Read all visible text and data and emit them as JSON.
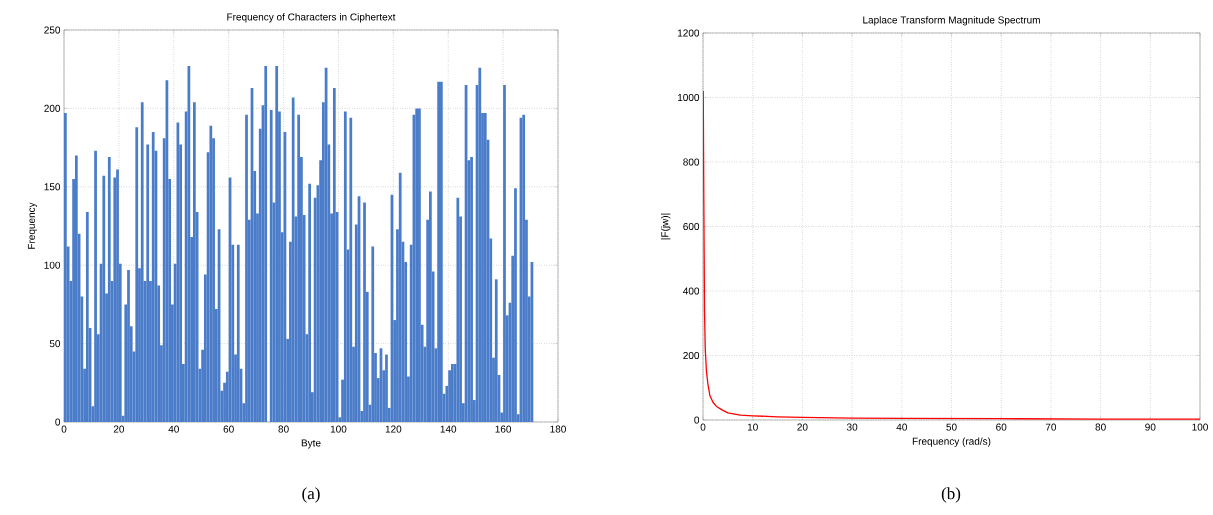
{
  "chart_data": [
    {
      "type": "bar",
      "title": "Frequency of Characters in Ciphertext",
      "xlabel": "Byte",
      "ylabel": "Frequency",
      "color": "#4a7cc9",
      "x": [
        0,
        1,
        2,
        3,
        4,
        5,
        6,
        7,
        8,
        9,
        10,
        11,
        12,
        13,
        14,
        15,
        16,
        17,
        18,
        19,
        20,
        21,
        22,
        23,
        24,
        25,
        26,
        27,
        28,
        29,
        30,
        31,
        32,
        33,
        34,
        35,
        36,
        37,
        38,
        39,
        40,
        41,
        42,
        43,
        44,
        45,
        46,
        47,
        48,
        49,
        50,
        51,
        52,
        53,
        54,
        55,
        56,
        57,
        58,
        59,
        60,
        61,
        62,
        63,
        64,
        65,
        66,
        67,
        68,
        69,
        70,
        71,
        72,
        73,
        74,
        75,
        76,
        77,
        78,
        79,
        80,
        81,
        82,
        83,
        84,
        85,
        86,
        87,
        88,
        89,
        90,
        91,
        92,
        93,
        94,
        95,
        96,
        97,
        98,
        99,
        100,
        101,
        102,
        103,
        104,
        105,
        106,
        107,
        108,
        109,
        110,
        111,
        112,
        113,
        114,
        115,
        116,
        117,
        118,
        119,
        120,
        121,
        122,
        123,
        124,
        125,
        126,
        127,
        128,
        129,
        130,
        131,
        132,
        133,
        134,
        135,
        136,
        137,
        138,
        139,
        140,
        141,
        142,
        143,
        144,
        145,
        146,
        147,
        148,
        149,
        150,
        151,
        152,
        153,
        154,
        155,
        156,
        157,
        158,
        159,
        160,
        161,
        162,
        163,
        164,
        165,
        166,
        167,
        168,
        169,
        170
      ],
      "values": [
        197,
        112,
        90,
        155,
        170,
        120,
        80,
        34,
        134,
        60,
        10,
        173,
        56,
        101,
        157,
        82,
        169,
        90,
        156,
        161,
        101,
        4,
        75,
        97,
        61,
        45,
        188,
        98,
        204,
        90,
        177,
        90,
        185,
        173,
        87,
        49,
        181,
        218,
        155,
        75,
        101,
        191,
        177,
        37,
        198,
        227,
        118,
        204,
        134,
        34,
        46,
        94,
        172,
        189,
        181,
        72,
        123,
        20,
        25,
        32,
        156,
        113,
        43,
        113,
        34,
        12,
        196,
        129,
        213,
        160,
        133,
        187,
        202,
        227,
        0,
        199,
        140,
        227,
        198,
        121,
        185,
        53,
        115,
        207,
        131,
        196,
        169,
        132,
        56,
        152,
        19,
        143,
        151,
        167,
        204,
        226,
        177,
        133,
        213,
        134,
        3,
        27,
        198,
        110,
        194,
        48,
        126,
        144,
        7,
        140,
        83,
        11,
        112,
        44,
        28,
        47,
        33,
        43,
        9,
        145,
        65,
        123,
        159,
        115,
        102,
        29,
        113,
        196,
        200,
        200,
        62,
        48,
        129,
        147,
        96,
        47,
        217,
        217,
        18,
        23,
        33,
        37,
        37,
        143,
        131,
        12,
        215,
        167,
        169,
        14,
        215,
        226,
        197,
        197,
        180,
        117,
        41,
        91,
        30,
        6,
        215,
        68,
        76,
        106,
        149,
        5,
        194,
        196,
        129,
        80,
        102
      ],
      "xlim": [
        0,
        180
      ],
      "ylim": [
        0,
        250
      ],
      "xticks": [
        0,
        20,
        40,
        60,
        80,
        100,
        120,
        140,
        160,
        180
      ],
      "yticks": [
        0,
        50,
        100,
        150,
        200,
        250
      ],
      "grid": true,
      "annotations": [
        "(a)"
      ]
    },
    {
      "type": "line",
      "title": "Laplace Transform Magnitude Spectrum",
      "xlabel": "Frequency (rad/s)",
      "ylabel": "|F(jw)|",
      "color": "#ff0000",
      "x": [
        0.05,
        0.15,
        0.3,
        0.45,
        0.7,
        1,
        1.4,
        2,
        2.7,
        4,
        5,
        7.5,
        10,
        15,
        20,
        30,
        40,
        60,
        80,
        100
      ],
      "values": [
        1020,
        720,
        340,
        220,
        150,
        110,
        75,
        55,
        42,
        30,
        22,
        15,
        13,
        10,
        8,
        6,
        5,
        4,
        3,
        3
      ],
      "xlim": [
        0,
        100
      ],
      "ylim": [
        0,
        1200
      ],
      "xticks": [
        0,
        10,
        20,
        30,
        40,
        50,
        60,
        70,
        80,
        90,
        100
      ],
      "yticks": [
        0,
        200,
        400,
        600,
        800,
        1000,
        1200
      ],
      "grid": true,
      "annotations": [
        "(b)"
      ]
    }
  ]
}
